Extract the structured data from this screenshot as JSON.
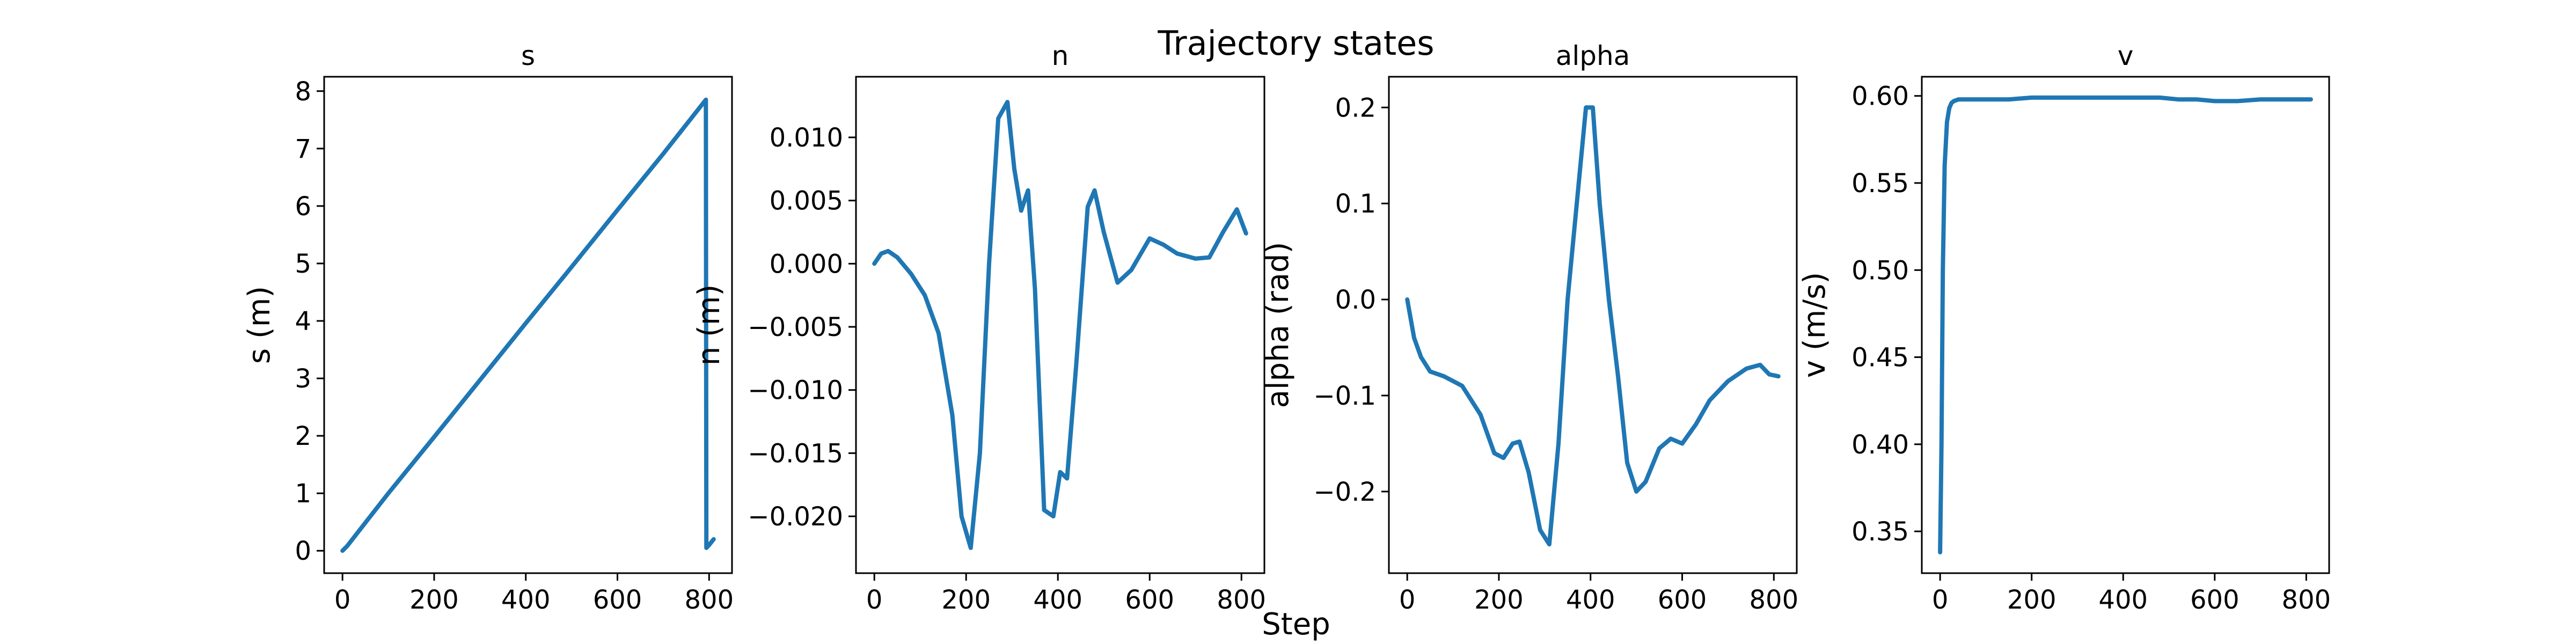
{
  "figure": {
    "suptitle": "Trajectory states",
    "xlabel": "Step"
  },
  "colors": {
    "line": "#1f77b4",
    "axes": "#000000",
    "background": "#ffffff"
  },
  "chart_data": [
    {
      "type": "line",
      "title": "s",
      "xlabel": "",
      "ylabel": "s (m)",
      "xlim": [
        -40,
        850
      ],
      "ylim": [
        -0.39,
        8.25
      ],
      "xticks": [
        0,
        200,
        400,
        600,
        800
      ],
      "xtick_labels": [
        "0",
        "200",
        "400",
        "600",
        "800"
      ],
      "yticks": [
        0,
        1,
        2,
        3,
        4,
        5,
        6,
        7,
        8
      ],
      "ytick_labels": [
        "0",
        "1",
        "2",
        "3",
        "4",
        "5",
        "6",
        "7",
        "8"
      ],
      "grid": false,
      "series": [
        {
          "x": [
            0,
            10,
            100,
            200,
            300,
            400,
            500,
            600,
            700,
            793,
            794,
            800,
            810
          ],
          "y": [
            0,
            0.08,
            1.0,
            1.98,
            2.97,
            3.96,
            4.94,
            5.93,
            6.91,
            7.85,
            0.05,
            0.1,
            0.2
          ]
        }
      ]
    },
    {
      "type": "line",
      "title": "n",
      "xlabel": "",
      "ylabel": "n (m)",
      "xlim": [
        -40,
        850
      ],
      "ylim": [
        -0.0245,
        0.0148
      ],
      "xticks": [
        0,
        200,
        400,
        600,
        800
      ],
      "xtick_labels": [
        "0",
        "200",
        "400",
        "600",
        "800"
      ],
      "yticks": [
        -0.02,
        -0.015,
        -0.01,
        -0.005,
        0.0,
        0.005,
        0.01
      ],
      "ytick_labels": [
        "−0.020",
        "−0.015",
        "−0.010",
        "−0.005",
        "0.000",
        "0.005",
        "0.010"
      ],
      "grid": false,
      "series": [
        {
          "x": [
            0,
            15,
            30,
            50,
            80,
            110,
            140,
            170,
            190,
            210,
            230,
            250,
            270,
            290,
            305,
            320,
            335,
            350,
            370,
            390,
            405,
            420,
            440,
            465,
            480,
            500,
            530,
            560,
            600,
            630,
            660,
            700,
            730,
            760,
            790,
            810
          ],
          "y": [
            0,
            0.0008,
            0.001,
            0.0005,
            -0.0008,
            -0.0025,
            -0.0055,
            -0.012,
            -0.02,
            -0.0225,
            -0.015,
            0.0,
            0.0115,
            0.0128,
            0.0075,
            0.0042,
            0.0058,
            -0.002,
            -0.0195,
            -0.02,
            -0.0165,
            -0.017,
            -0.008,
            0.0045,
            0.0058,
            0.0025,
            -0.0015,
            -0.0005,
            0.002,
            0.0015,
            0.0008,
            0.0004,
            0.0005,
            0.0025,
            0.0043,
            0.0024
          ]
        }
      ]
    },
    {
      "type": "line",
      "title": "alpha",
      "xlabel": "",
      "ylabel": "alpha (rad)",
      "xlim": [
        -40,
        850
      ],
      "ylim": [
        -0.285,
        0.232
      ],
      "xticks": [
        0,
        200,
        400,
        600,
        800
      ],
      "xtick_labels": [
        "0",
        "200",
        "400",
        "600",
        "800"
      ],
      "yticks": [
        -0.2,
        -0.1,
        0.0,
        0.1,
        0.2
      ],
      "ytick_labels": [
        "−0.2",
        "−0.1",
        "0.0",
        "0.1",
        "0.2"
      ],
      "grid": false,
      "series": [
        {
          "x": [
            0,
            15,
            30,
            50,
            80,
            120,
            160,
            190,
            210,
            230,
            245,
            265,
            290,
            310,
            330,
            350,
            370,
            390,
            405,
            420,
            440,
            460,
            480,
            500,
            520,
            550,
            575,
            600,
            630,
            660,
            700,
            740,
            770,
            790,
            810
          ],
          "y": [
            0,
            -0.04,
            -0.06,
            -0.075,
            -0.08,
            -0.09,
            -0.12,
            -0.16,
            -0.165,
            -0.15,
            -0.148,
            -0.18,
            -0.24,
            -0.255,
            -0.15,
            0.0,
            0.1,
            0.2,
            0.2,
            0.1,
            0.0,
            -0.08,
            -0.17,
            -0.2,
            -0.19,
            -0.155,
            -0.145,
            -0.15,
            -0.13,
            -0.105,
            -0.085,
            -0.072,
            -0.068,
            -0.078,
            -0.08
          ]
        }
      ]
    },
    {
      "type": "line",
      "title": "v",
      "xlabel": "",
      "ylabel": "v (m/s)",
      "xlim": [
        -40,
        850
      ],
      "ylim": [
        0.326,
        0.611
      ],
      "xticks": [
        0,
        200,
        400,
        600,
        800
      ],
      "xtick_labels": [
        "0",
        "200",
        "400",
        "600",
        "800"
      ],
      "yticks": [
        0.35,
        0.4,
        0.45,
        0.5,
        0.55,
        0.6
      ],
      "ytick_labels": [
        "0.35",
        "0.40",
        "0.45",
        "0.50",
        "0.55",
        "0.60"
      ],
      "grid": false,
      "series": [
        {
          "x": [
            0,
            3,
            6,
            10,
            15,
            20,
            25,
            30,
            40,
            50,
            70,
            100,
            150,
            200,
            300,
            400,
            480,
            520,
            560,
            600,
            650,
            700,
            750,
            800,
            810
          ],
          "y": [
            0.338,
            0.4,
            0.5,
            0.56,
            0.585,
            0.593,
            0.596,
            0.597,
            0.598,
            0.598,
            0.598,
            0.598,
            0.598,
            0.599,
            0.599,
            0.599,
            0.599,
            0.598,
            0.598,
            0.597,
            0.597,
            0.598,
            0.598,
            0.598,
            0.598
          ]
        }
      ]
    }
  ]
}
